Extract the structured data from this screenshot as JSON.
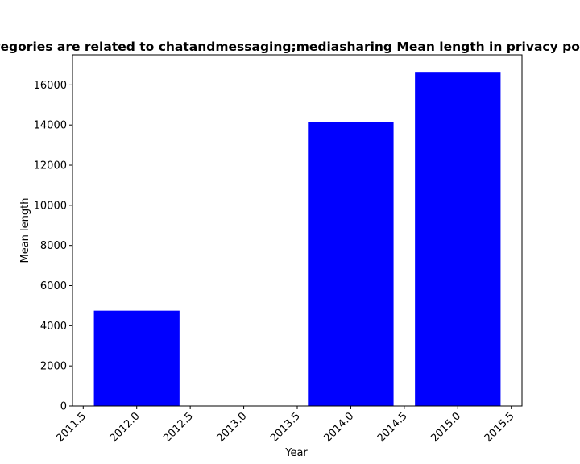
{
  "chart_data": {
    "type": "bar",
    "title": "Categories are related to chatandmessaging;mediasharing Mean length in privacy policies",
    "xlabel": "Year",
    "ylabel": "Mean length",
    "x": [
      2012,
      2013,
      2014,
      2015
    ],
    "values": [
      4750,
      0,
      14150,
      16650
    ],
    "bar_width": 0.8,
    "xlim": [
      2011.4,
      2015.6
    ],
    "ylim": [
      0,
      17500
    ],
    "xticks": [
      "2011.5",
      "2012.0",
      "2012.5",
      "2013.0",
      "2013.5",
      "2014.0",
      "2014.5",
      "2015.0",
      "2015.5"
    ],
    "xtick_values": [
      2011.5,
      2012.0,
      2012.5,
      2013.0,
      2013.5,
      2014.0,
      2014.5,
      2015.0,
      2015.5
    ],
    "yticks": [
      "0",
      "2000",
      "4000",
      "6000",
      "8000",
      "10000",
      "12000",
      "14000",
      "16000"
    ],
    "ytick_values": [
      0,
      2000,
      4000,
      6000,
      8000,
      10000,
      12000,
      14000,
      16000
    ],
    "bar_color": "#0000ff",
    "grid": false,
    "legend": "none"
  }
}
